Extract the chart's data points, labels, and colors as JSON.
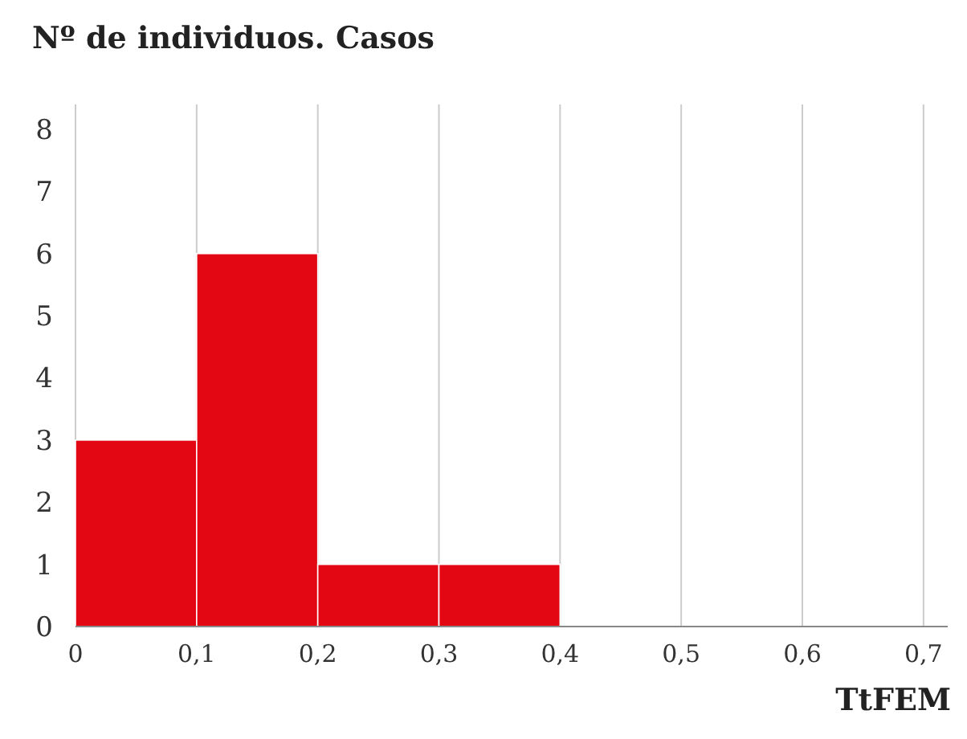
{
  "chart_data": {
    "type": "histogram",
    "title": "Nº de individuos. Casos",
    "xlabel": "TtFEM",
    "bins": [
      0,
      0.1,
      0.2,
      0.3,
      0.4
    ],
    "values": [
      3,
      6,
      1,
      1
    ],
    "color": "#e30613",
    "xlim": [
      0,
      0.72
    ],
    "ylim": [
      0,
      8.4
    ],
    "xticks": [
      {
        "value": 0,
        "label": "0"
      },
      {
        "value": 0.1,
        "label": "0,1"
      },
      {
        "value": 0.2,
        "label": "0,2"
      },
      {
        "value": 0.3,
        "label": "0,3"
      },
      {
        "value": 0.4,
        "label": "0,4"
      },
      {
        "value": 0.5,
        "label": "0,5"
      },
      {
        "value": 0.6,
        "label": "0,6"
      },
      {
        "value": 0.7,
        "label": "0,7"
      }
    ],
    "yticks": [
      0,
      1,
      2,
      3,
      4,
      5,
      6,
      7,
      8
    ],
    "grid": "x"
  }
}
